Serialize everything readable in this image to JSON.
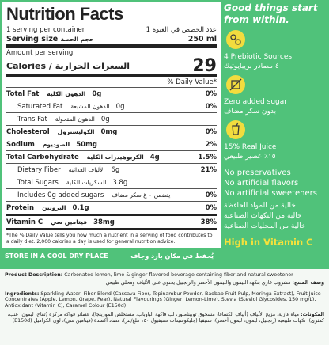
{
  "nutrition": {
    "title": "Nutrition Facts",
    "servings_per_container": "1 serving per container",
    "servings_arabic": "عدد الحصص في العبوة 1",
    "serving_size_label": "Serving size",
    "serving_size_arabic": "حجم الحصة",
    "serving_size": "250 ml",
    "amount_per_serving": "Amount per serving",
    "calories_label": "Calories / السعرات الحرارية",
    "calories": 29,
    "daily_value_header": "% Daily Value*",
    "rows": [
      {
        "label": "Total Fat",
        "arabic": "الدهون الكلية",
        "amount": "0g",
        "dv": "0%",
        "bold": true
      },
      {
        "label": "Saturated Fat",
        "arabic": "الدهون المشبعة",
        "amount": "0g",
        "dv": "0%",
        "indent": true
      },
      {
        "label": "Trans Fat",
        "arabic": "الدهون المتحولة",
        "amount": "0g",
        "indent": true
      },
      {
        "label": "Cholesterol",
        "arabic": "الكوليسترول",
        "amount": "0mg",
        "dv": "0%",
        "bold": true
      },
      {
        "label": "Sodium",
        "arabic": "الصوديوم",
        "amount": "50mg",
        "dv": "2%",
        "bold": true
      },
      {
        "label": "Total Carbohydrate",
        "arabic": "الكربوهيدرات الكلية",
        "amount": "4g",
        "dv": "1.5%",
        "bold": true
      },
      {
        "label": "Dietary Fiber",
        "arabic": "الألياف الغذائية",
        "amount": "6g",
        "dv": "21%",
        "indent": true
      },
      {
        "label": "Total Sugars",
        "arabic": "السكريات الكلية",
        "amount": "3.8g",
        "indent": true
      },
      {
        "label": "Includes 0g added sugars",
        "arabic": "يتضمن ٠ غ سكر مضاف",
        "dv": "0%",
        "indent": true
      },
      {
        "label": "Protein",
        "arabic": "البروتين",
        "amount": "0.1g",
        "dv": "0%",
        "bold": true
      },
      {
        "label": "Vitamin C",
        "arabic": "فيتامين سي",
        "amount": "38mg",
        "dv": "38%",
        "bold": true
      }
    ],
    "footnote": "*The % Daily Value tells you how much a nutrient in a serving of food contributes to a daily diet. 2,000 calories a day is used for general nutrition advice."
  },
  "storage": {
    "en": "STORE IN A COOL DRY PLACE",
    "ar": "يُحفظ في مكان بارد وجاف"
  },
  "claims": {
    "tagline": "Good things start from within.",
    "features": [
      {
        "en": "4 Prebiotic Sources",
        "ar": "٤ مصادر بريبايوتيك"
      },
      {
        "en": "Zero added sugar",
        "ar": "بدون سكر مضاف"
      },
      {
        "en": "15% Real Juice",
        "ar": "١٥٪ عصير طبيعي"
      }
    ],
    "free_from": [
      "No preservatives",
      "No artificial flavors",
      "No artificial sweeteners"
    ],
    "free_from_arabic": [
      "خالية من المواد الحافظة",
      "خالية من النكهات الصناعية",
      "خالية من المحليات الصناعية"
    ],
    "highlight": "High in Vitamin C"
  },
  "description": {
    "label": "Product Description:",
    "text": "Carbonated lemon, lime & ginger flavored beverage containing fiber and natural sweetener",
    "label_arabic": "وصف المنتج:",
    "text_arabic": "مشروب غازي بنكهة الليمون والليمون الأخضر والزنجبيل يحتوي على الألياف ومحلي طبيعي"
  },
  "ingredients": {
    "label": "Ingredients:",
    "text": "Sparkling Water, Fiber Blend (Cassava Fiber, Topinambur Powder, Baobab Fruit Pulp, Moringa Extract), Fruit Juice Concentrates (Apple, Lemon, Grape, Pear), Natural Flavourings (Ginger, Lemon-Lime), Stevia (Steviol Glycosides, 150 mg/L), Antioxidant (Vitamin C), Caramel Colour (E150d)",
    "label_arabic": "المكونات:",
    "text_arabic": "مياه غازية، مزيج الألياف (ألياف الكسافا، مسحوق توبينامبور، لب فاكهة الباوباب، مستخلص المورينجا)، عصائر فواكه مركزة (تفاح، ليمون، عنب، كمثرى)، نكهات طبيعية (زنجبيل، ليمون، ليمون أخضر)، ستيفيا (جليكوسيدات ستيفيول ١٥٠ ملغ/لتر)، مضاد أكسدة (فيتامين سي)، لون الكراميل (E150d)"
  }
}
